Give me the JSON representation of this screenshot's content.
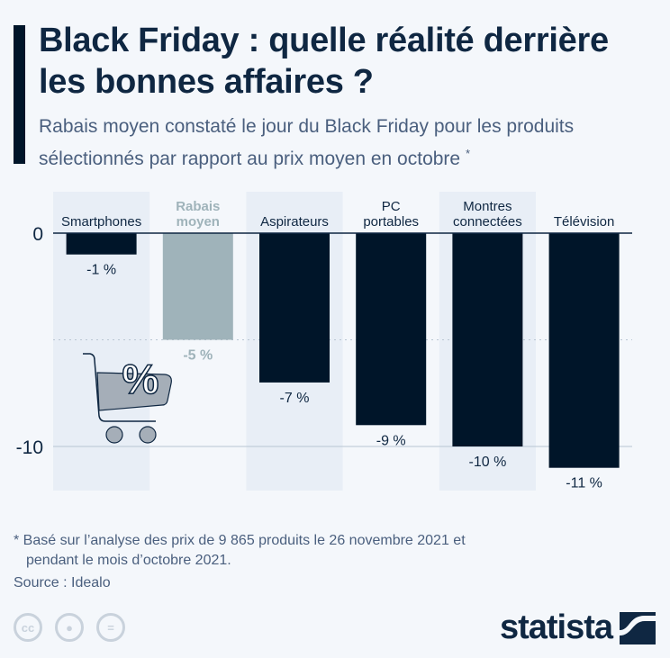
{
  "header": {
    "title": "Black Friday : quelle réalité derrière les bonnes affaires ?",
    "subtitle": "Rabais moyen constaté le jour du Black Friday pour les produits sélectionnés par rapport au prix moyen en octobre",
    "subtitle_mark": "*"
  },
  "chart_data": {
    "type": "bar",
    "categories": [
      "Smartphones",
      "Rabais moyen",
      "Aspirateurs",
      "PC portables",
      "Montres connectées",
      "Télévision"
    ],
    "values": [
      -1,
      -5,
      -7,
      -9,
      -10,
      -11
    ],
    "data_labels": [
      "-1 %",
      "-5 %",
      "-7 %",
      "-9 %",
      "-10 %",
      "-11 %"
    ],
    "y_ticks": [
      "0",
      "-10"
    ],
    "ylim": [
      -12,
      0
    ],
    "highlight_category": "Rabais moyen",
    "colors": {
      "bar": "#001529",
      "highlight": "#9fb3ba",
      "band": "#e8eef6"
    },
    "icon": "shopping-cart-percent-icon"
  },
  "footer": {
    "note_line1": "* Basé sur l’analyse des prix de 9 865 produits le 26 novembre 2021 et",
    "note_line2": "pendant le mois d’octobre 2021.",
    "source": "Source : Idealo",
    "brand": "statista",
    "license_icons": [
      "cc-icon",
      "attribution-icon",
      "no-derivatives-icon"
    ]
  }
}
